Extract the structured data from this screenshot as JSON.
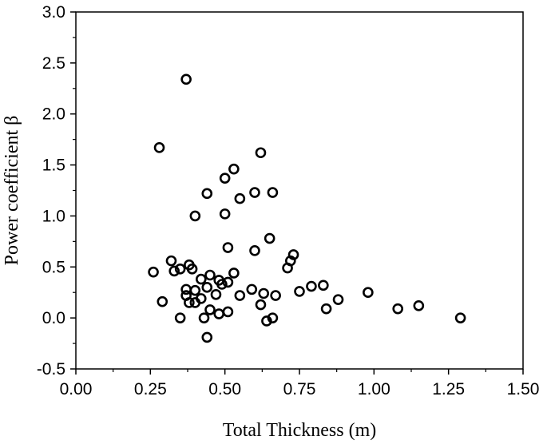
{
  "chart_data": {
    "type": "scatter",
    "xlabel": "Total Thickness (m)",
    "ylabel": "Power coefficient β",
    "xlim": [
      0.0,
      1.5
    ],
    "ylim": [
      -0.5,
      3.0
    ],
    "xticks": [
      "0.00",
      "0.25",
      "0.50",
      "0.75",
      "1.00",
      "1.25",
      "1.50"
    ],
    "yticks": [
      "-0.5",
      "0.0",
      "0.5",
      "1.0",
      "1.5",
      "2.0",
      "2.5",
      "3.0"
    ],
    "xtick_values": [
      0.0,
      0.25,
      0.5,
      0.75,
      1.0,
      1.25,
      1.5
    ],
    "ytick_values": [
      -0.5,
      0.0,
      0.5,
      1.0,
      1.5,
      2.0,
      2.5,
      3.0
    ],
    "grid": false,
    "marker": "open-circle",
    "points": [
      {
        "x": 0.26,
        "y": 0.45
      },
      {
        "x": 0.28,
        "y": 1.67
      },
      {
        "x": 0.29,
        "y": 0.16
      },
      {
        "x": 0.32,
        "y": 0.56
      },
      {
        "x": 0.33,
        "y": 0.46
      },
      {
        "x": 0.35,
        "y": 0.48
      },
      {
        "x": 0.35,
        "y": 0.0
      },
      {
        "x": 0.37,
        "y": 2.34
      },
      {
        "x": 0.37,
        "y": 0.28
      },
      {
        "x": 0.37,
        "y": 0.22
      },
      {
        "x": 0.38,
        "y": 0.15
      },
      {
        "x": 0.38,
        "y": 0.52
      },
      {
        "x": 0.39,
        "y": 0.48
      },
      {
        "x": 0.4,
        "y": 0.15
      },
      {
        "x": 0.4,
        "y": 0.27
      },
      {
        "x": 0.4,
        "y": 1.0
      },
      {
        "x": 0.42,
        "y": 0.38
      },
      {
        "x": 0.42,
        "y": 0.19
      },
      {
        "x": 0.43,
        "y": 0.0
      },
      {
        "x": 0.44,
        "y": 1.22
      },
      {
        "x": 0.44,
        "y": 0.3
      },
      {
        "x": 0.44,
        "y": -0.19
      },
      {
        "x": 0.45,
        "y": 0.42
      },
      {
        "x": 0.45,
        "y": 0.08
      },
      {
        "x": 0.47,
        "y": 0.23
      },
      {
        "x": 0.48,
        "y": 0.04
      },
      {
        "x": 0.48,
        "y": 0.37
      },
      {
        "x": 0.49,
        "y": 0.33
      },
      {
        "x": 0.5,
        "y": 1.02
      },
      {
        "x": 0.5,
        "y": 1.37
      },
      {
        "x": 0.51,
        "y": 0.35
      },
      {
        "x": 0.51,
        "y": 0.06
      },
      {
        "x": 0.51,
        "y": 0.69
      },
      {
        "x": 0.53,
        "y": 1.46
      },
      {
        "x": 0.53,
        "y": 0.44
      },
      {
        "x": 0.55,
        "y": 1.17
      },
      {
        "x": 0.55,
        "y": 0.22
      },
      {
        "x": 0.59,
        "y": 0.28
      },
      {
        "x": 0.6,
        "y": 1.23
      },
      {
        "x": 0.6,
        "y": 0.66
      },
      {
        "x": 0.62,
        "y": 1.62
      },
      {
        "x": 0.62,
        "y": 0.13
      },
      {
        "x": 0.63,
        "y": 0.24
      },
      {
        "x": 0.64,
        "y": -0.03
      },
      {
        "x": 0.65,
        "y": 0.78
      },
      {
        "x": 0.66,
        "y": 1.23
      },
      {
        "x": 0.67,
        "y": 0.22
      },
      {
        "x": 0.66,
        "y": 0.0
      },
      {
        "x": 0.71,
        "y": 0.49
      },
      {
        "x": 0.72,
        "y": 0.56
      },
      {
        "x": 0.73,
        "y": 0.62
      },
      {
        "x": 0.75,
        "y": 0.26
      },
      {
        "x": 0.79,
        "y": 0.31
      },
      {
        "x": 0.83,
        "y": 0.32
      },
      {
        "x": 0.84,
        "y": 0.09
      },
      {
        "x": 0.88,
        "y": 0.18
      },
      {
        "x": 0.98,
        "y": 0.25
      },
      {
        "x": 1.08,
        "y": 0.09
      },
      {
        "x": 1.15,
        "y": 0.12
      },
      {
        "x": 1.29,
        "y": 0.0
      }
    ]
  }
}
